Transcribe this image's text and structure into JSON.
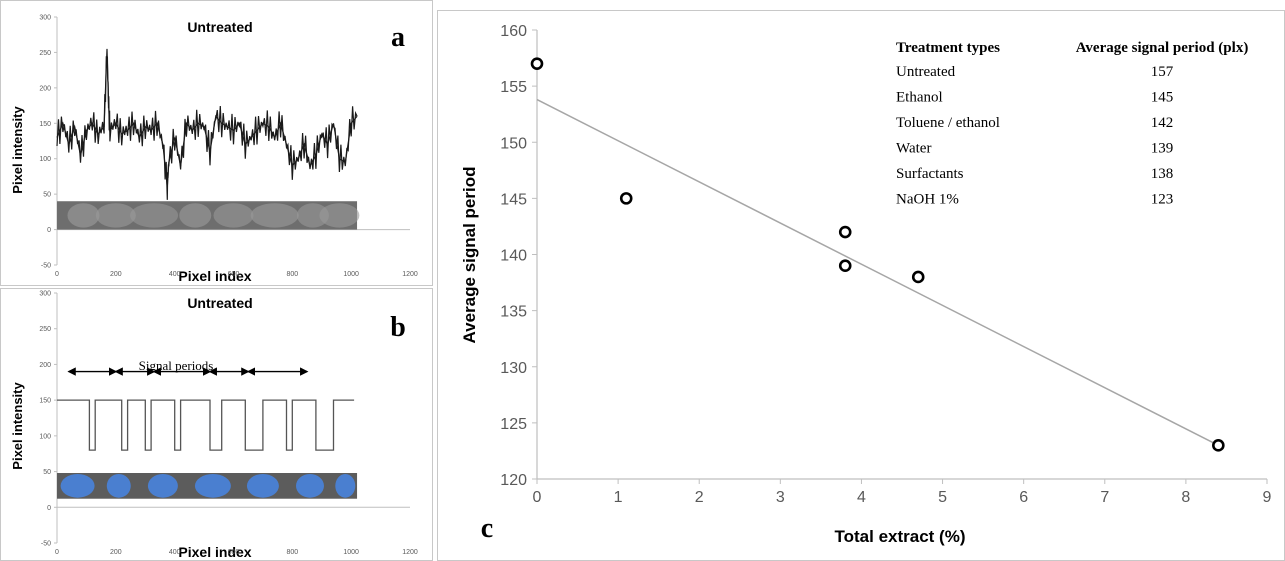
{
  "chart_data": [
    {
      "panel": "a",
      "type": "line",
      "title": "Untreated",
      "xlabel": "Pixel index",
      "ylabel": "Pixel intensity",
      "xlim": [
        0,
        1200
      ],
      "ylim": [
        -50,
        300
      ],
      "x_ticks": [
        "0",
        "200",
        "400",
        "600",
        "800",
        "1000",
        "1200"
      ],
      "y_ticks": [
        "-50",
        "0",
        "50",
        "100",
        "150",
        "200",
        "250",
        "300"
      ],
      "series": [
        {
          "x": [
            0,
            20,
            40,
            60,
            80,
            100,
            120,
            140,
            160,
            170,
            175,
            180,
            200,
            220,
            240,
            260,
            280,
            300,
            320,
            340,
            360,
            375,
            380,
            400,
            420,
            440,
            460,
            480,
            500,
            520,
            540,
            560,
            580,
            600,
            620,
            640,
            660,
            680,
            700,
            720,
            740,
            760,
            780,
            800,
            820,
            840,
            860,
            880,
            900,
            920,
            940,
            960,
            980,
            1000,
            1020
          ],
          "values": [
            130,
            150,
            120,
            145,
            105,
            140,
            150,
            135,
            145,
            255,
            180,
            140,
            150,
            135,
            140,
            150,
            130,
            145,
            140,
            150,
            120,
            60,
            95,
            130,
            90,
            150,
            140,
            150,
            145,
            110,
            160,
            150,
            145,
            140,
            150,
            120,
            130,
            140,
            150,
            145,
            130,
            150,
            120,
            90,
            100,
            120,
            90,
            105,
            135,
            120,
            150,
            100,
            95,
            150,
            160
          ]
        }
      ],
      "strip_image": "grayscale fibre cross-section strip"
    },
    {
      "panel": "b",
      "type": "line",
      "title": "Untreated",
      "xlabel": "Pixel index",
      "ylabel": "Pixel intensity",
      "xlim": [
        0,
        1200
      ],
      "ylim": [
        -50,
        300
      ],
      "x_ticks": [
        "0",
        "200",
        "400",
        "600",
        "800",
        "1000",
        "1200"
      ],
      "y_ticks": [
        "-50",
        "0",
        "50",
        "100",
        "150",
        "200",
        "250",
        "300"
      ],
      "annotation": "Signal periods",
      "series": [
        {
          "x": [
            0,
            110,
            110,
            130,
            130,
            220,
            220,
            240,
            240,
            300,
            300,
            320,
            320,
            400,
            400,
            420,
            420,
            520,
            520,
            560,
            560,
            640,
            640,
            700,
            700,
            780,
            780,
            800,
            800,
            880,
            880,
            940,
            940,
            1010
          ],
          "values": [
            150,
            150,
            80,
            80,
            150,
            150,
            80,
            80,
            150,
            150,
            80,
            80,
            150,
            150,
            80,
            80,
            150,
            150,
            80,
            80,
            150,
            150,
            80,
            80,
            150,
            150,
            80,
            80,
            150,
            150,
            80,
            80,
            150,
            150
          ]
        }
      ]
    },
    {
      "panel": "c",
      "type": "scatter",
      "xlabel": "Total extract (%)",
      "ylabel": "Average signal period",
      "xlim": [
        0,
        9
      ],
      "ylim": [
        120,
        160
      ],
      "x_ticks": [
        "0",
        "1",
        "2",
        "3",
        "4",
        "5",
        "6",
        "7",
        "8",
        "9"
      ],
      "y_ticks": [
        "120",
        "125",
        "130",
        "135",
        "140",
        "145",
        "150",
        "155",
        "160"
      ],
      "points": [
        {
          "x": 0,
          "y": 157
        },
        {
          "x": 1.1,
          "y": 145
        },
        {
          "x": 3.8,
          "y": 142
        },
        {
          "x": 3.8,
          "y": 139
        },
        {
          "x": 4.7,
          "y": 138
        },
        {
          "x": 8.4,
          "y": 123
        }
      ],
      "trendline": {
        "x": [
          0,
          8.4
        ],
        "y": [
          153.8,
          123
        ]
      },
      "table": {
        "headers": [
          "Treatment types",
          "Average signal period (plx)"
        ],
        "rows": [
          [
            "Untreated",
            "157"
          ],
          [
            "Ethanol",
            "145"
          ],
          [
            "Toluene / ethanol",
            "142"
          ],
          [
            "Water",
            "139"
          ],
          [
            "Surfactants",
            "138"
          ],
          [
            "NaOH 1%",
            "123"
          ]
        ]
      }
    }
  ],
  "panel_letters": [
    "a",
    "b",
    "c"
  ],
  "colors": {
    "signal": "#1a1a1a",
    "axis": "#bfbfbf",
    "trend": "#a6a6a6",
    "fiber_blue": "#4a7fd0",
    "strip_gray": "#6e6e6e",
    "tick_text": "#595959"
  }
}
